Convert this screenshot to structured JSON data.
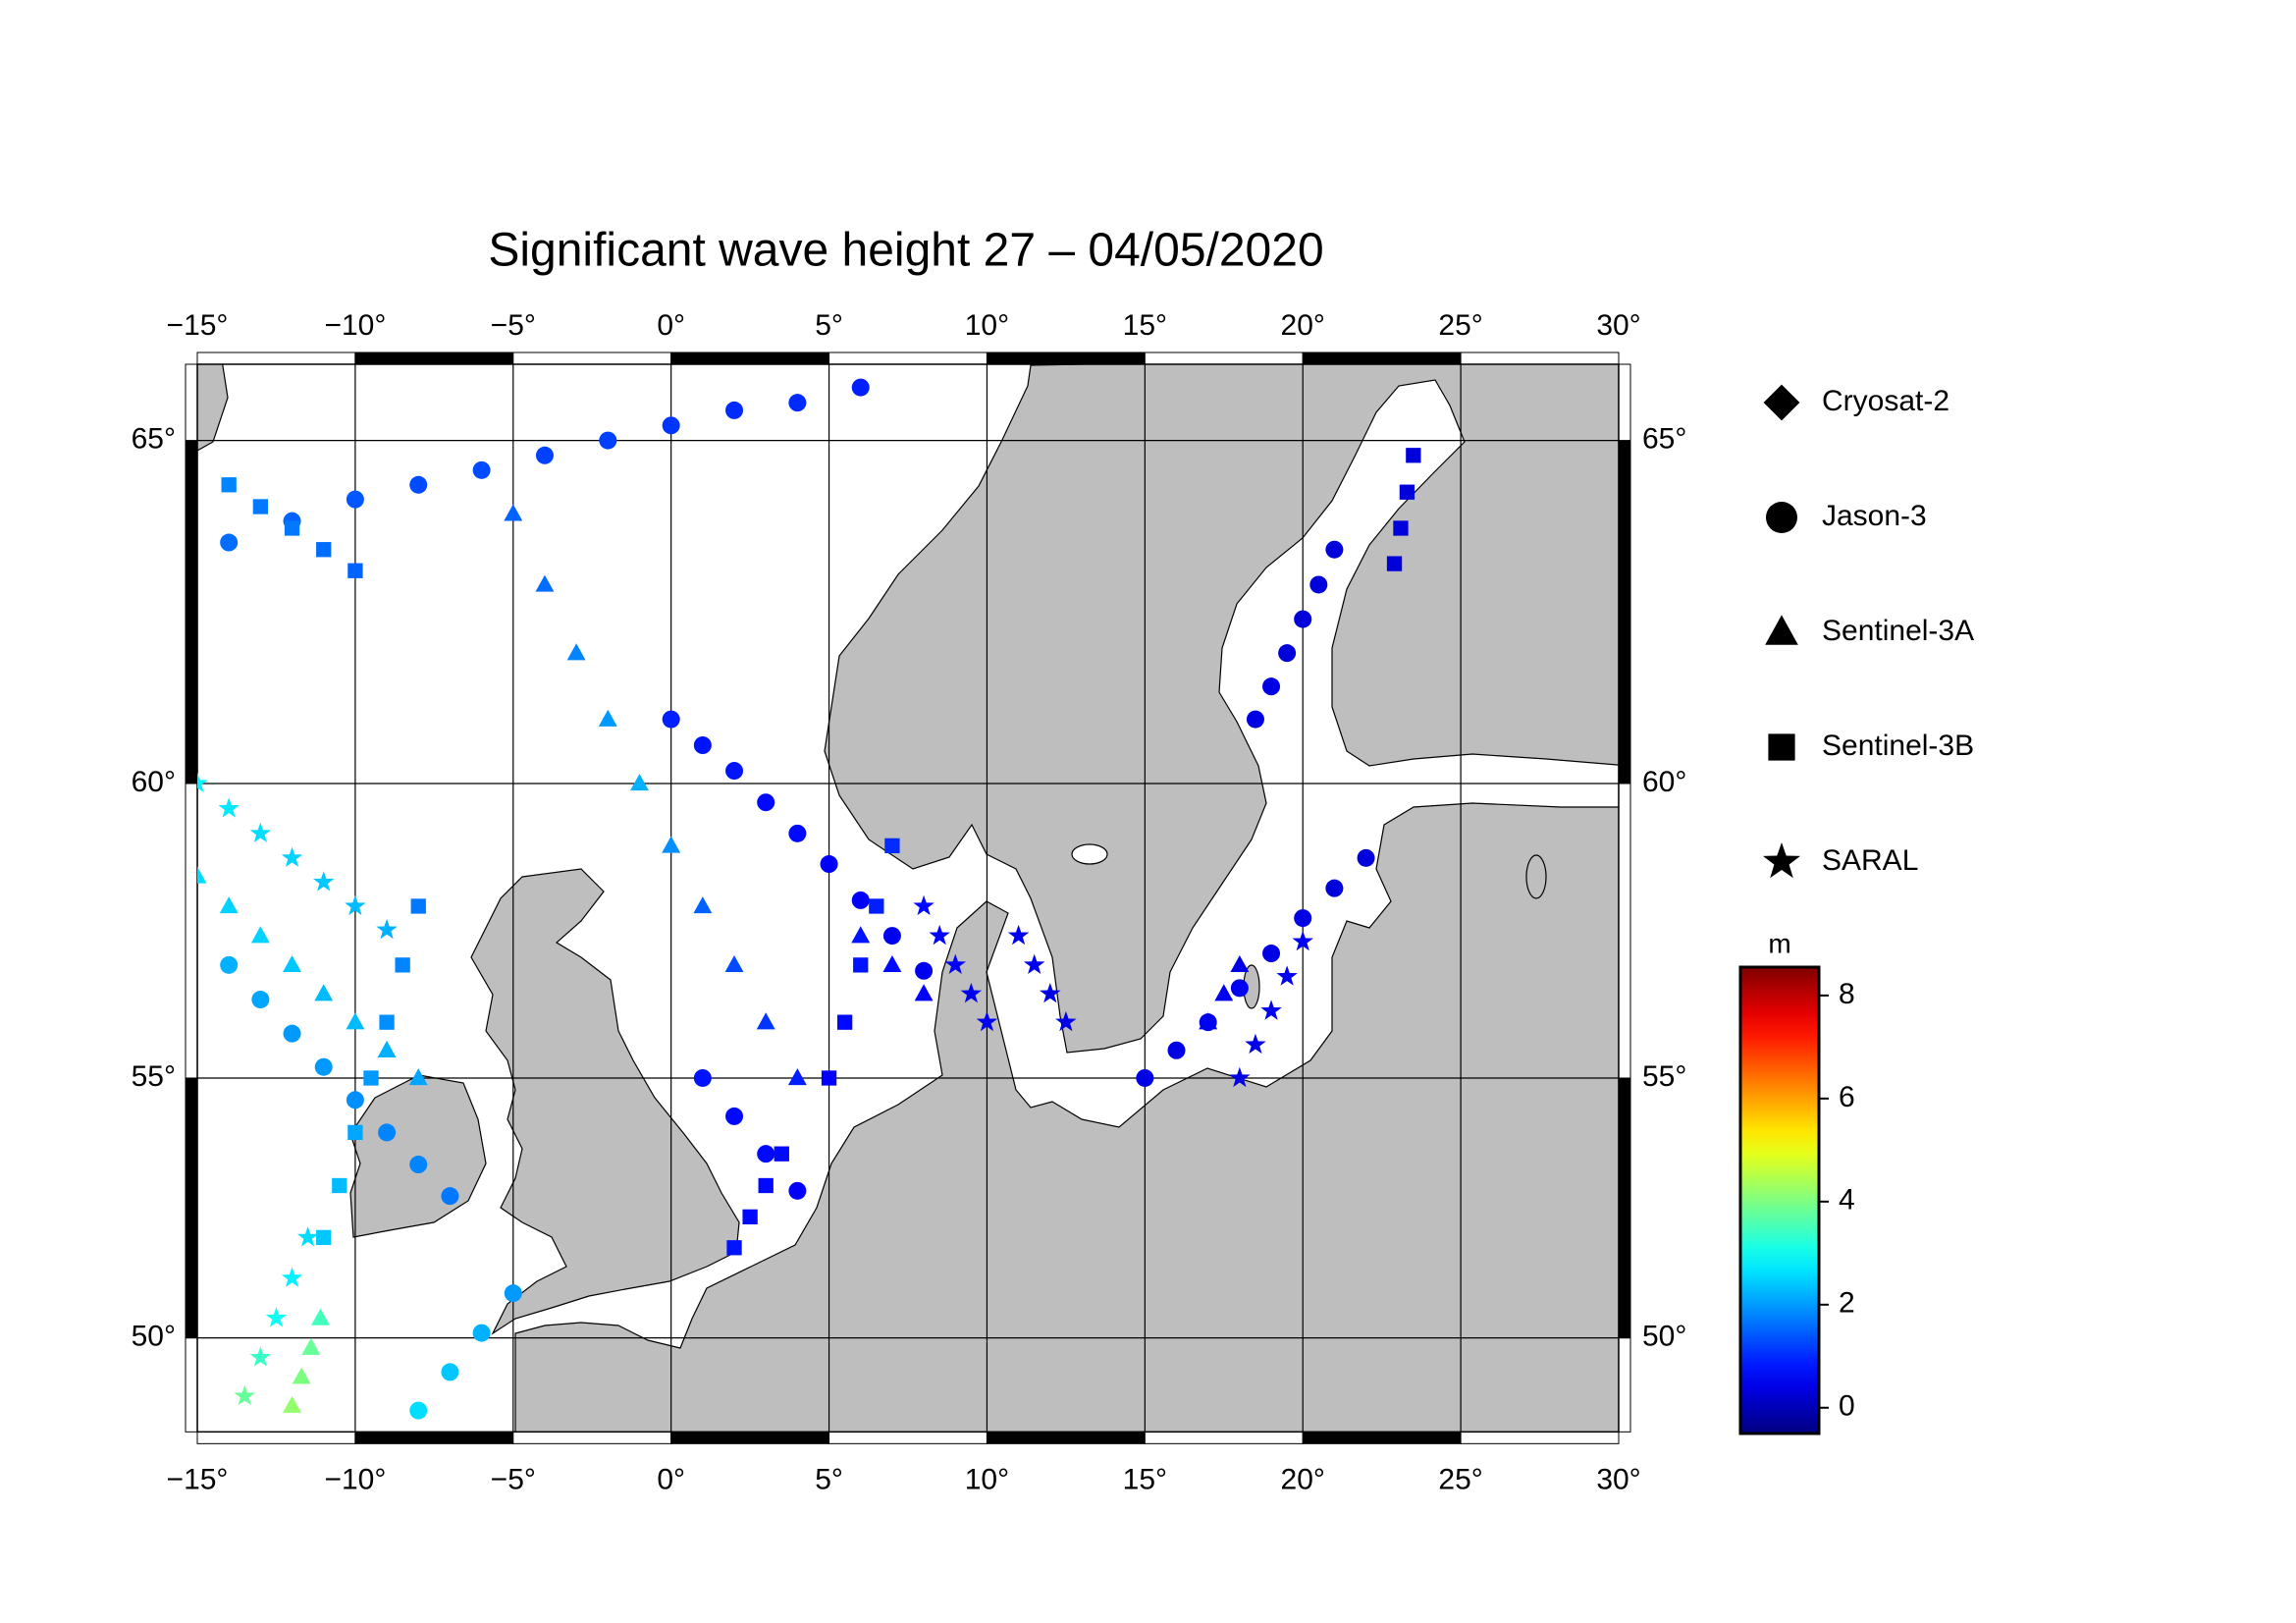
{
  "chart_data": {
    "type": "scatter-map",
    "title": "Significant wave height 27 – 04/05/2020",
    "projection": "mercator",
    "xlim": [
      -15,
      30
    ],
    "ylim": [
      48.05,
      66.0
    ],
    "xticks": [
      {
        "value": -15,
        "label": "−15°"
      },
      {
        "value": -10,
        "label": "−10°"
      },
      {
        "value": -5,
        "label": "−5°"
      },
      {
        "value": 0,
        "label": "0°"
      },
      {
        "value": 5,
        "label": "5°"
      },
      {
        "value": 10,
        "label": "10°"
      },
      {
        "value": 15,
        "label": "15°"
      },
      {
        "value": 20,
        "label": "20°"
      },
      {
        "value": 25,
        "label": "25°"
      },
      {
        "value": 30,
        "label": "30°"
      }
    ],
    "yticks": [
      {
        "value": 50,
        "label": "50°"
      },
      {
        "value": 55,
        "label": "55°"
      },
      {
        "value": 60,
        "label": "60°"
      },
      {
        "value": 65,
        "label": "65°"
      }
    ],
    "grid": true,
    "colorbar": {
      "label": "m",
      "colormap": "jet",
      "clim": [
        -0.5,
        8.55
      ],
      "ticks": [
        0,
        2,
        4,
        6,
        8
      ]
    },
    "series": [
      {
        "name": "Cryosat-2",
        "marker": "diamond",
        "x": [],
        "y": [],
        "values": []
      },
      {
        "name": "Jason-3",
        "marker": "circle",
        "x": [
          -14,
          -12,
          -10,
          -8,
          -6,
          -4,
          -2,
          0,
          2,
          4,
          6,
          0,
          1,
          2,
          3,
          4,
          5,
          6,
          7,
          8,
          15,
          16,
          17,
          18,
          19,
          20,
          21,
          22,
          18.5,
          19,
          19.5,
          20,
          20.5,
          21,
          -14,
          -13,
          -12,
          -11,
          -10,
          -9,
          -8,
          -7,
          1,
          2,
          3,
          4,
          -8,
          -7,
          -6,
          -5
        ],
        "y": [
          63.6,
          63.9,
          64.2,
          64.4,
          64.6,
          64.8,
          65.0,
          65.2,
          65.4,
          65.5,
          65.7,
          61,
          60.6,
          60.2,
          59.7,
          59.2,
          58.7,
          58.1,
          57.5,
          56.9,
          55,
          55.5,
          56,
          56.6,
          57.2,
          57.8,
          58.3,
          58.8,
          61,
          61.5,
          62,
          62.5,
          63,
          63.5,
          57,
          56.4,
          55.8,
          55.2,
          54.6,
          54,
          53.4,
          52.8,
          55,
          54.3,
          53.6,
          52.9,
          48.5,
          49.3,
          50.1,
          50.9
        ],
        "values": [
          1.6,
          1.5,
          1.4,
          1.3,
          1.3,
          1.2,
          1.2,
          1.1,
          1.0,
          1.0,
          0.9,
          0.9,
          0.8,
          0.8,
          0.7,
          0.7,
          0.6,
          0.6,
          0.5,
          0.5,
          0.4,
          0.4,
          0.5,
          0.5,
          0.4,
          0.4,
          0.3,
          0.3,
          0.4,
          0.4,
          0.3,
          0.3,
          0.3,
          0.3,
          2.2,
          2.1,
          2.0,
          2.0,
          1.9,
          1.8,
          1.8,
          1.7,
          0.8,
          0.7,
          0.7,
          0.6,
          2.6,
          2.4,
          2.2,
          2.0
        ]
      },
      {
        "name": "Sentinel-3A",
        "marker": "triangle",
        "x": [
          -15,
          -14,
          -13,
          -12,
          -11,
          -10,
          -9,
          -8,
          -5,
          -4,
          -3,
          -2,
          -1,
          0,
          1,
          2,
          3,
          4,
          -12,
          -11.7,
          -11.4,
          -11.1,
          6,
          7,
          8,
          17,
          17.5,
          18
        ],
        "y": [
          58.5,
          58,
          57.5,
          57,
          56.5,
          56,
          55.5,
          55,
          64,
          63,
          62,
          61,
          60,
          59,
          58,
          57,
          56,
          55,
          48.6,
          49.2,
          49.8,
          50.4,
          57.5,
          57,
          56.5,
          56,
          56.5,
          57
        ],
        "values": [
          2.6,
          2.5,
          2.5,
          2.4,
          2.3,
          2.3,
          2.2,
          2.1,
          1.5,
          1.6,
          1.8,
          2.0,
          2.2,
          1.9,
          1.5,
          1.3,
          1.1,
          0.9,
          4.2,
          4.0,
          3.8,
          3.5,
          0.8,
          0.7,
          0.6,
          0.5,
          0.5,
          0.4
        ]
      },
      {
        "name": "Sentinel-3B",
        "marker": "square",
        "x": [
          -11,
          -10.5,
          -10,
          -9.5,
          -9,
          -8.5,
          -8,
          5,
          5.5,
          6,
          6.5,
          7,
          23.5,
          23.3,
          23.1,
          22.9,
          -14,
          -13,
          -12,
          -11,
          -10,
          2,
          2.5,
          3,
          3.5
        ],
        "y": [
          52,
          53,
          54,
          55,
          56,
          57,
          58,
          55,
          56,
          57,
          58,
          59,
          64.8,
          64.3,
          63.8,
          63.3,
          64.4,
          64.1,
          63.8,
          63.5,
          63.2,
          51.8,
          52.4,
          53,
          53.6
        ],
        "values": [
          2.4,
          2.3,
          2.1,
          2.0,
          1.9,
          1.8,
          1.7,
          0.6,
          0.7,
          0.8,
          0.9,
          1.0,
          0.3,
          0.3,
          0.3,
          0.3,
          1.8,
          1.7,
          1.7,
          1.6,
          1.5,
          0.8,
          0.7,
          0.7,
          0.7
        ]
      },
      {
        "name": "SARAL",
        "marker": "star",
        "x": [
          -15,
          -14,
          -13,
          -12,
          -11,
          -10,
          -9,
          8,
          8.5,
          9,
          9.5,
          10,
          11,
          11.5,
          12,
          12.5,
          -13.5,
          -13,
          -12.5,
          -12,
          -11.5,
          18,
          18.5,
          19,
          19.5,
          20
        ],
        "y": [
          60,
          59.6,
          59.2,
          58.8,
          58.4,
          58,
          57.6,
          58,
          57.5,
          57,
          56.5,
          56,
          57.5,
          57,
          56.5,
          56,
          48.8,
          49.6,
          50.4,
          51.2,
          52,
          55,
          55.6,
          56.2,
          56.8,
          57.4
        ],
        "values": [
          2.8,
          2.7,
          2.6,
          2.5,
          2.4,
          2.3,
          2.2,
          0.7,
          0.6,
          0.6,
          0.5,
          0.5,
          0.5,
          0.5,
          0.4,
          0.4,
          3.8,
          3.4,
          3.0,
          2.8,
          2.6,
          0.4,
          0.4,
          0.5,
          0.5,
          0.5
        ]
      }
    ]
  }
}
